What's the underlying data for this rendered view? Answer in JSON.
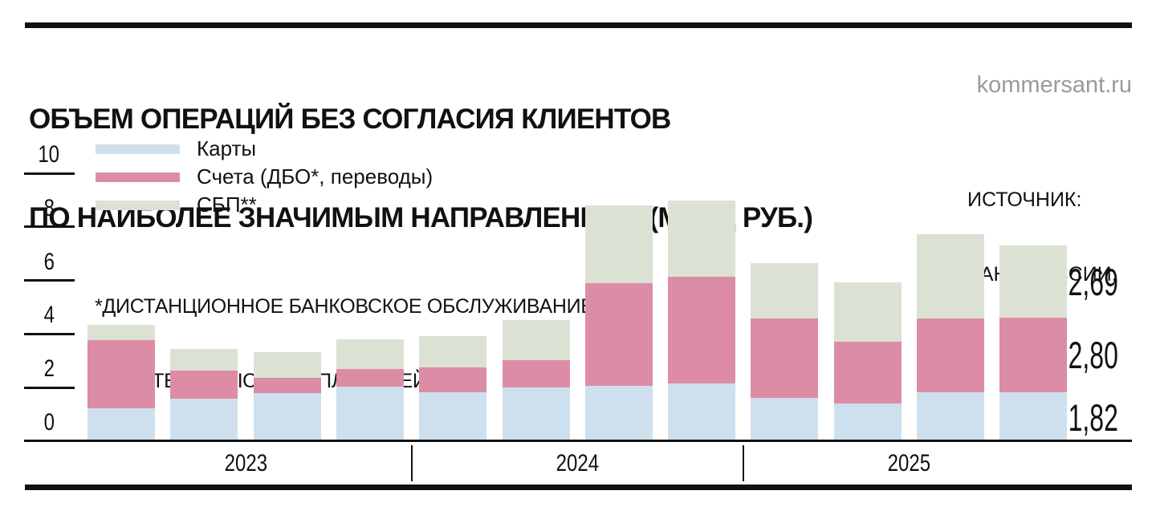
{
  "header": {
    "title_line1": "ОБЪЕМ ОПЕРАЦИЙ БЕЗ СОГЛАСИЯ КЛИЕНТОВ",
    "title_line2": "ПО НАИБОЛЕЕ ЗНАЧИМЫМ НАПРАВЛЕНИЯМ (МЛРД РУБ.)",
    "brand": "kommersant.ru"
  },
  "source": {
    "line1": "ИСТОЧНИК:",
    "line2": "БАНК РОССИИ."
  },
  "footnotes": {
    "line1": "*ДИСТАНЦИОННОЕ БАНКОВСКОЕ ОБСЛУЖИВАНИЕ.",
    "line2": "**СИСТЕМА БЫСТРЫХ ПЛАТЕЖЕЙ."
  },
  "colors": {
    "cards_blue": "#cee0ee",
    "accounts_pink": "#dd8ca6",
    "sbp_green": "#dbe2d4",
    "brand_gray": "#9a9a9a",
    "ink": "#111111"
  },
  "chart_data": {
    "type": "bar",
    "stacked": true,
    "title": "Объем операций без согласия клиентов по наиболее значимым направлениям (млрд руб.)",
    "unit": "млрд руб.",
    "ylim": [
      0,
      10
    ],
    "yticks": [
      0,
      2,
      4,
      6,
      8,
      10
    ],
    "grid": false,
    "legend_position": "top-left",
    "year_groups": [
      {
        "label": "2023",
        "bars": 4
      },
      {
        "label": "2024",
        "bars": 4
      },
      {
        "label": "2025",
        "bars": 4
      }
    ],
    "series": [
      {
        "name": "Карты",
        "color": "#cee0ee",
        "values": [
          1.24,
          1.6,
          1.81,
          2.05,
          1.84,
          2.02,
          2.08,
          2.17,
          1.63,
          1.42,
          1.84,
          1.82
        ]
      },
      {
        "name": "Счета (ДБО*, переводы)",
        "color": "#dd8ca6",
        "values": [
          2.53,
          1.03,
          0.57,
          0.63,
          0.9,
          1.0,
          3.83,
          3.98,
          2.96,
          2.29,
          2.74,
          2.8
        ]
      },
      {
        "name": "СБП**",
        "color": "#dbe2d4",
        "values": [
          0.57,
          0.81,
          0.94,
          1.12,
          1.18,
          1.51,
          2.9,
          2.84,
          2.05,
          2.23,
          3.14,
          2.69
        ]
      }
    ],
    "last_bar_value_labels": [
      {
        "text": "2,69",
        "series": "СБП**",
        "series_index": 2
      },
      {
        "text": "2,80",
        "series": "Счета (ДБО*, переводы)",
        "series_index": 1
      },
      {
        "text": "1,82",
        "series": "Карты",
        "series_index": 0
      }
    ]
  }
}
